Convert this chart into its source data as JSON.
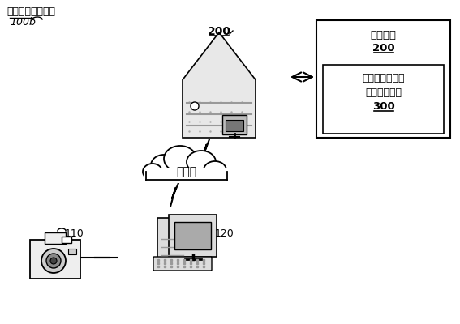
{
  "bg_color": "#ffffff",
  "title_text": "出血区域分割系统",
  "title_sub": "100b",
  "server_label": "200",
  "box_title": "计算设备",
  "box_sub": "200",
  "box_inner_text1": "视网膜图像出血",
  "box_inner_text2": "区域分割装置",
  "box_inner_sub": "300",
  "cloud_label": "互联网",
  "camera_label": "110",
  "computer_label": "120",
  "font_color": "#000000"
}
